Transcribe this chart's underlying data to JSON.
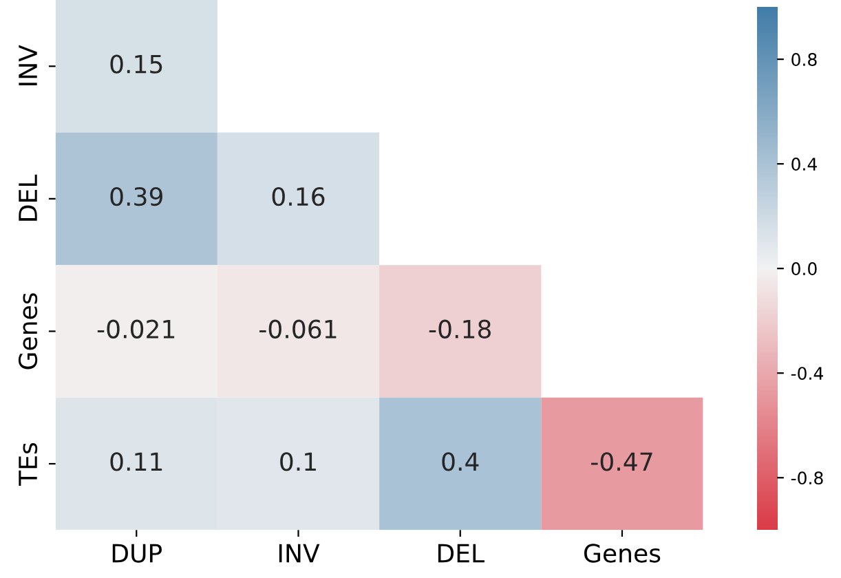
{
  "chart_data": {
    "type": "heatmap",
    "categories": [
      "DUP",
      "INV",
      "DEL",
      "Genes"
    ],
    "y_categories": [
      "INV",
      "DEL",
      "Genes",
      "TEs"
    ],
    "cells": [
      [
        0.15,
        null,
        null,
        null
      ],
      [
        0.39,
        0.16,
        null,
        null
      ],
      [
        -0.021,
        -0.061,
        -0.18,
        null
      ],
      [
        0.11,
        0.1,
        0.4,
        -0.47
      ]
    ],
    "clim": [
      -1,
      1
    ],
    "cticks": [
      -0.8,
      -0.4,
      {
        "value": 0,
        "label": "0.0"
      },
      0.4,
      0.8
    ],
    "data_labels": true
  }
}
